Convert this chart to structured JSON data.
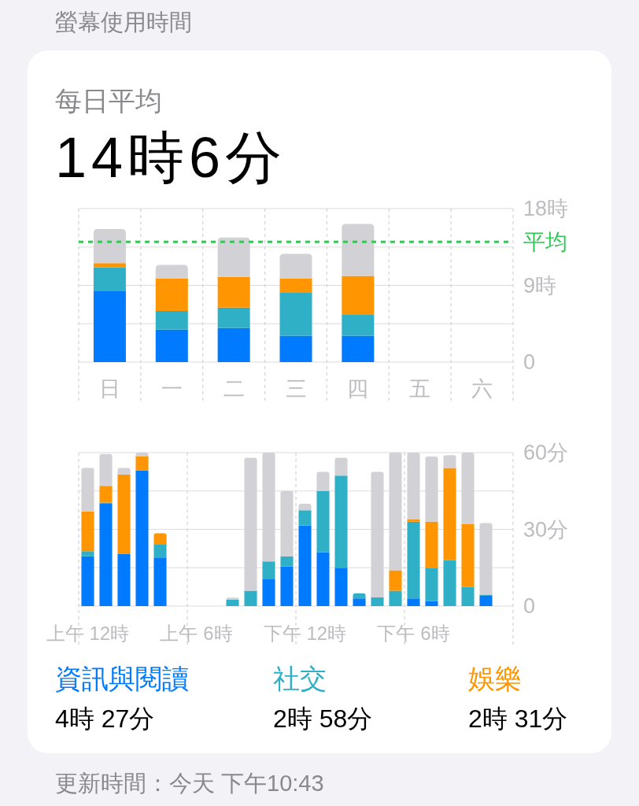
{
  "chart_data": [
    {
      "type": "bar",
      "title": "螢幕使用時間",
      "subtitle": "每日平均",
      "annotations": [
        "14時6分"
      ],
      "categories": [
        "日",
        "一",
        "二",
        "三",
        "四",
        "五",
        "六"
      ],
      "stacked": true,
      "series": [
        {
          "color": "#007aff",
          "values": [
            8.3,
            3.8,
            4.0,
            3.1,
            3.1,
            null,
            null
          ]
        },
        {
          "color": "#30b0c7",
          "values": [
            2.8,
            2.2,
            2.4,
            5.1,
            2.5,
            null,
            null
          ]
        },
        {
          "color": "#ff9500",
          "values": [
            0.5,
            3.8,
            3.6,
            1.6,
            4.5,
            null,
            null
          ]
        },
        {
          "color": "#d1d1d6",
          "values": [
            4.0,
            1.6,
            4.6,
            2.9,
            6.1,
            null,
            null
          ]
        }
      ],
      "ylim": [
        0,
        18
      ],
      "yticks": [
        0,
        {
          "value": 4.5,
          "label": null
        },
        {
          "value": 9,
          "label": "9時"
        },
        {
          "value": 13.5,
          "label": null
        },
        {
          "value": 18,
          "label": "18時"
        }
      ],
      "ref_lines": [
        {
          "axis": "y",
          "value": 14.1,
          "label": "平均",
          "color": "#34c759",
          "line_style": "dashed"
        }
      ],
      "grid": true
    },
    {
      "type": "bar",
      "categories": [
        "上午 12時",
        null,
        null,
        null,
        null,
        null,
        "上午 6時",
        null,
        null,
        null,
        null,
        null,
        "下午 12時",
        null,
        null,
        null,
        null,
        null,
        "下午 6時",
        null,
        null,
        null,
        null,
        null
      ],
      "stacked": true,
      "series": [
        {
          "name": "資訊與閱讀",
          "color": "#007aff",
          "values": [
            19.5,
            40,
            20.5,
            53,
            19,
            null,
            null,
            null,
            null,
            null,
            10.5,
            15.5,
            31.5,
            21,
            15,
            3,
            null,
            null,
            3,
            2,
            null,
            null,
            4,
            null
          ]
        },
        {
          "name": "社交",
          "color": "#30b0c7",
          "values": [
            2,
            0.5,
            null,
            null,
            5,
            null,
            null,
            null,
            2.5,
            6,
            7,
            4,
            6,
            24,
            36,
            2,
            3.5,
            6,
            30,
            13,
            18,
            7.5,
            0.5,
            null
          ]
        },
        {
          "name": "娛樂",
          "color": "#ff9500",
          "values": [
            15.5,
            6.5,
            31,
            5.5,
            4.5,
            null,
            null,
            null,
            null,
            null,
            null,
            null,
            null,
            null,
            null,
            null,
            null,
            8,
            1,
            18,
            36,
            24.5,
            null,
            null
          ]
        },
        {
          "color": "#d1d1d6",
          "values": [
            17,
            12.5,
            2.5,
            1.5,
            null,
            null,
            null,
            null,
            0.8,
            52,
            42.5,
            25.5,
            2.5,
            7.5,
            7,
            null,
            49,
            46,
            26,
            25.5,
            5,
            28,
            28,
            null
          ]
        }
      ],
      "ylim": [
        0,
        60
      ],
      "yticks": [
        0,
        {
          "value": 15,
          "label": null
        },
        {
          "value": 30,
          "label": "30分"
        },
        {
          "value": 45,
          "label": null
        },
        {
          "value": 60,
          "label": "60分"
        }
      ],
      "grid": true,
      "legend": "bottom",
      "annotations": [
        "4時 27分",
        "2時 58分",
        "2時 31分",
        "更新時間：今天 下午10:43"
      ]
    }
  ]
}
